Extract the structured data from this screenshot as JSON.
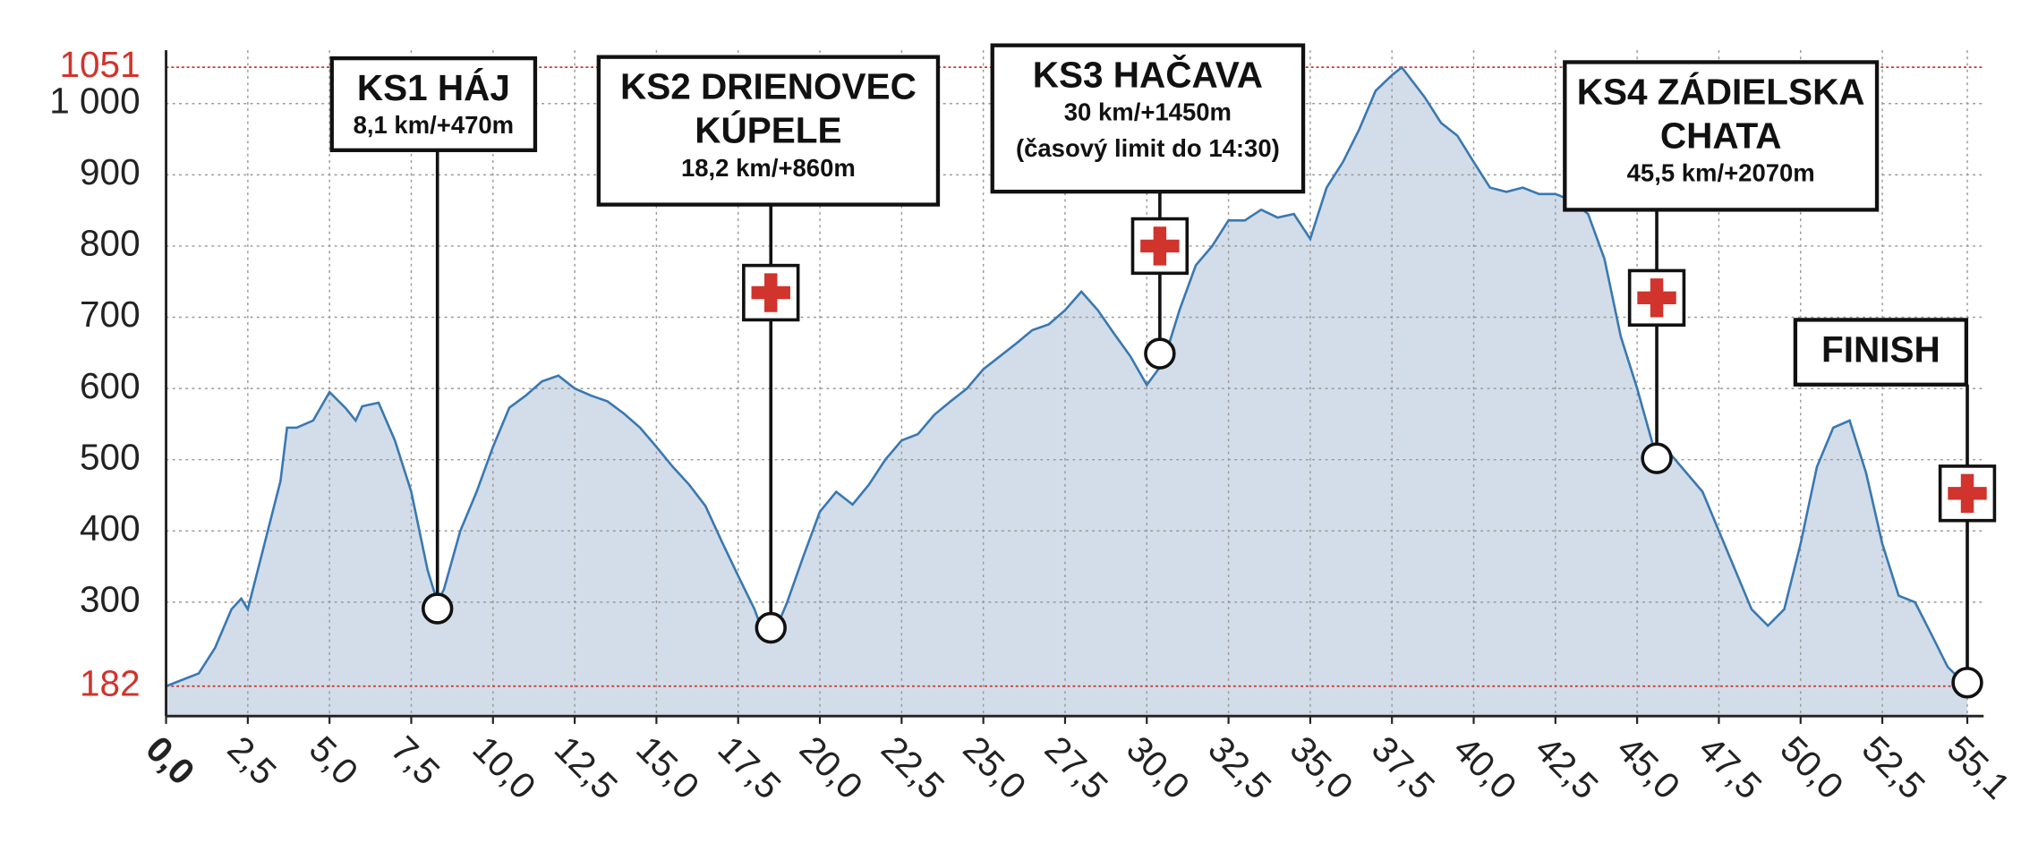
{
  "chart_data": {
    "type": "area",
    "x": [
      0,
      1,
      1.5,
      2,
      2.3,
      2.5,
      3,
      3.5,
      3.7,
      4,
      4.5,
      5,
      5.5,
      5.8,
      6,
      6.5,
      7,
      7.5,
      8,
      8.3,
      8.5,
      9,
      9.5,
      10,
      10.5,
      11,
      11.5,
      12,
      12.5,
      13,
      13.5,
      14,
      14.5,
      15,
      15.5,
      16,
      16.5,
      17,
      17.5,
      18,
      18.2,
      18.5,
      19,
      19.5,
      20,
      20.5,
      21,
      21.5,
      22,
      22.5,
      23,
      23.5,
      24,
      24.5,
      25,
      25.5,
      26,
      26.5,
      27,
      27.5,
      28,
      28.5,
      29,
      29.5,
      30,
      30.5,
      31,
      31.5,
      32,
      32.5,
      33,
      33.5,
      34,
      34.5,
      35,
      35.5,
      36,
      36.5,
      37,
      37.5,
      37.8,
      38.5,
      39,
      39.5,
      40,
      40.5,
      41,
      41.5,
      42,
      42.5,
      43,
      43.5,
      44,
      44.5,
      45,
      45.5,
      46,
      46.5,
      47,
      47.5,
      48,
      48.5,
      49,
      49.5,
      50,
      50.5,
      51,
      51.5,
      52,
      52.5,
      53,
      53.5,
      54,
      54.5,
      55.1
    ],
    "values": [
      182,
      200,
      236,
      290,
      305,
      290,
      380,
      470,
      545,
      545,
      555,
      595,
      572,
      555,
      575,
      580,
      527,
      455,
      345,
      300,
      318,
      400,
      455,
      518,
      573,
      590,
      610,
      618,
      600,
      590,
      582,
      565,
      545,
      518,
      490,
      465,
      435,
      385,
      337,
      290,
      265,
      245,
      300,
      365,
      427,
      455,
      437,
      465,
      500,
      527,
      536,
      563,
      582,
      600,
      627,
      645,
      663,
      682,
      690,
      710,
      736,
      710,
      677,
      645,
      605,
      636,
      710,
      773,
      800,
      836,
      836,
      851,
      840,
      845,
      810,
      882,
      918,
      964,
      1018,
      1040,
      1051,
      1009,
      973,
      955,
      918,
      882,
      876,
      882,
      873,
      873,
      864,
      845,
      782,
      673,
      600,
      518,
      509,
      482,
      455,
      400,
      345,
      290,
      267,
      290,
      382,
      490,
      545,
      555,
      482,
      382,
      309,
      300,
      255,
      209,
      182
    ],
    "color": "#3a78b0",
    "fill": "#d2dde9",
    "xlim": [
      0,
      55.6
    ],
    "ylim": [
      140,
      1075
    ],
    "xticks": [
      {
        "value": 0,
        "label": "0,0"
      },
      {
        "value": 2.5,
        "label": "2,5"
      },
      {
        "value": 5,
        "label": "5,0"
      },
      {
        "value": 7.5,
        "label": "7,5"
      },
      {
        "value": 10,
        "label": "10,0"
      },
      {
        "value": 12.5,
        "label": "12,5"
      },
      {
        "value": 15,
        "label": "15,0"
      },
      {
        "value": 17.5,
        "label": "17,5"
      },
      {
        "value": 20,
        "label": "20,0"
      },
      {
        "value": 22.5,
        "label": "22,5"
      },
      {
        "value": 25,
        "label": "25,0"
      },
      {
        "value": 27.5,
        "label": "27,5"
      },
      {
        "value": 30,
        "label": "30,0"
      },
      {
        "value": 32.5,
        "label": "32,5"
      },
      {
        "value": 35,
        "label": "35,0"
      },
      {
        "value": 37.5,
        "label": "37,5"
      },
      {
        "value": 40,
        "label": "40,0"
      },
      {
        "value": 42.5,
        "label": "42,5"
      },
      {
        "value": 45,
        "label": "45,0"
      },
      {
        "value": 47.5,
        "label": "47,5"
      },
      {
        "value": 50,
        "label": "50,0"
      },
      {
        "value": 52.5,
        "label": "52,5"
      },
      {
        "value": 55.1,
        "label": "55,1"
      }
    ],
    "yticks": [
      300,
      400,
      500,
      600,
      700,
      800,
      900,
      {
        "value": 1000,
        "label": "1 000"
      }
    ],
    "reference_lines": [
      {
        "value": 182,
        "color": "#d0342c"
      },
      {
        "value": 1051,
        "color": "#d0342c"
      }
    ],
    "grid": true,
    "checkpoints": [
      {
        "name": [
          "KS1 HÁJ"
        ],
        "detail": [
          "8,1 km/+470m"
        ],
        "x": 8.3,
        "y": 291
      },
      {
        "name": [
          "KS2 DRIENOVEC",
          "KÚPELE"
        ],
        "detail": [
          "18,2 km/+860m"
        ],
        "x": 18.5,
        "y": 264
      },
      {
        "name": [
          "KS3 HAČAVA"
        ],
        "detail": [
          "30 km/+1450m",
          "(časový limit do 14:30)"
        ],
        "x": 30.4,
        "y": 649
      },
      {
        "name": [
          "KS4 ZÁDIELSKA",
          "CHATA"
        ],
        "detail": [
          "45,5 km/+2070m"
        ],
        "x": 45.6,
        "y": 502
      },
      {
        "name": [
          "FINISH"
        ],
        "detail": [],
        "x": 55.1,
        "y": 187
      }
    ]
  }
}
